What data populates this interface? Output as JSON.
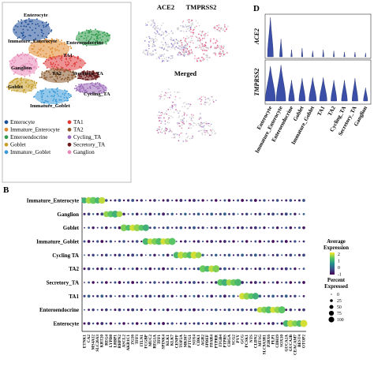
{
  "panels": {
    "a": {
      "letter": "",
      "clusters_on_map": [
        "Enterocyte",
        "Immature_Enterocyte",
        "Enteroendocrine",
        "TA1",
        "TA2",
        "Ganglion",
        "Secretory_TA",
        "Goblet",
        "Cycling_TA",
        "Immature_Goblet"
      ]
    },
    "c": {
      "letter": "",
      "titles": [
        "ACE2",
        "TMPRSS2",
        "Merged"
      ]
    },
    "d": {
      "letter": "D"
    },
    "b": {
      "letter": "B"
    }
  },
  "legend_a": {
    "items": [
      {
        "label": "Enterocyte",
        "color": "#1f4e99"
      },
      {
        "label": "TA1",
        "color": "#e03a3a"
      },
      {
        "label": "Immature_Enterocyte",
        "color": "#e08a2e"
      },
      {
        "label": "TA2",
        "color": "#8a5a2b"
      },
      {
        "label": "Enteroendocrine",
        "color": "#2e9a4a"
      },
      {
        "label": "Cycling_TA",
        "color": "#9a6ab8"
      },
      {
        "label": "Goblet",
        "color": "#c8a02e"
      },
      {
        "label": "Secretory_TA",
        "color": "#6b1a1a"
      },
      {
        "label": "Immature_Goblet",
        "color": "#3a9ad8"
      },
      {
        "label": "Ganglion",
        "color": "#e889b8"
      }
    ]
  },
  "colorbar": {
    "title_line1": "Average",
    "title_line2": "Expression",
    "ticks": [
      "2",
      "1",
      "0",
      "-1"
    ],
    "colors": [
      "#fde725",
      "#5ec962",
      "#21918c",
      "#3b528b",
      "#440154"
    ]
  },
  "size_legend": {
    "title_line1": "Percent",
    "title_line2": "Expressed",
    "items": [
      {
        "label": "0",
        "value": 0
      },
      {
        "label": "25",
        "value": 25
      },
      {
        "label": "50",
        "value": 50
      },
      {
        "label": "75",
        "value": 75
      },
      {
        "label": "100",
        "value": 100
      }
    ]
  },
  "chart_data": [
    {
      "type": "violin",
      "panel": "D",
      "genes": [
        "ACE2",
        "TMPRSS2"
      ],
      "categories": [
        "Enterocyte",
        "Immature_Enterocyte",
        "Enteroendocrine",
        "Goblet",
        "Immature_Goblet",
        "TA1",
        "TA2",
        "Cycling_TA",
        "Secretory_TA",
        "Ganglion"
      ],
      "fill": "#3b4fa8",
      "relative_heights": {
        "ACE2": [
          1.0,
          0.45,
          0.18,
          0.22,
          0.15,
          0.18,
          0.15,
          0.12,
          0.12,
          0.1
        ],
        "TMPRSS2": [
          0.92,
          0.95,
          0.55,
          0.6,
          0.62,
          0.62,
          0.55,
          0.55,
          0.6,
          0.35
        ]
      },
      "relative_widths": {
        "ACE2": [
          0.55,
          0.25,
          0.12,
          0.12,
          0.12,
          0.12,
          0.1,
          0.1,
          0.1,
          0.08
        ],
        "TMPRSS2": [
          0.95,
          0.9,
          0.55,
          0.6,
          0.7,
          0.7,
          0.55,
          0.55,
          0.55,
          0.4
        ]
      }
    },
    {
      "type": "dot",
      "panel": "B",
      "rows": [
        "Immature_Enterocyte",
        "Ganglion",
        "Goblet",
        "Immature_Goblet",
        "Cycling TA",
        "TA2",
        "Secretory_TA",
        "TA1",
        "Enteroendocrine",
        "Enterocyte"
      ],
      "genes": [
        "ETNK1",
        "CA2",
        "MS4A12",
        "SLC26A3",
        "KRT20",
        "REG4",
        "LYPD8",
        "LRBP1",
        "RHPN2",
        "ASCL2",
        "AKR1C1",
        "ZG16",
        "TFF3",
        "ITLN1",
        "FCGBP",
        "MUC2",
        "REG1A",
        "TFF1",
        "SPINK4",
        "KLK1",
        "KLK7",
        "CENPF",
        "TOP2A",
        "MKI67",
        "PTTG1",
        "SOX4",
        "CDK1",
        "AGR2",
        "SPDEF",
        "FFAR4",
        "PTPRR",
        "ITGB4",
        "PTPRS",
        "CHGA",
        "SCG2",
        "PYY",
        "GCG",
        "PCSK1",
        "NTS",
        "CLDN2",
        "MT1G",
        "SLC9A3R1",
        "P2RX6",
        "PLP1",
        "CDH19",
        "SOX10",
        "GUCA2A",
        "GUCA2B",
        "CEACAM7",
        "BEST4",
        "OTOP2"
      ],
      "dots_note": "size = percent expressed (0-100), color = average expression (-1..2)",
      "cells": [
        [
          1.6,
          90
        ],
        [
          1.4,
          85
        ],
        [
          1.1,
          70
        ],
        [
          1.0,
          60
        ],
        [
          0.8,
          55
        ],
        [
          -0.2,
          30
        ],
        [
          0.4,
          40
        ],
        [
          -0.6,
          20
        ],
        [
          0.6,
          35
        ],
        [
          -0.4,
          15
        ],
        [
          -0.5,
          20
        ],
        [
          -0.8,
          10
        ],
        [
          -0.8,
          12
        ],
        [
          -0.8,
          12
        ],
        [
          -0.7,
          12
        ],
        [
          -0.6,
          10
        ],
        [
          -0.8,
          8
        ],
        [
          -0.8,
          8
        ],
        [
          -0.7,
          8
        ],
        [
          -0.8,
          6
        ],
        [
          -0.8,
          6
        ],
        [
          -0.6,
          10
        ],
        [
          -0.6,
          10
        ],
        [
          -0.6,
          10
        ],
        [
          -0.2,
          15
        ],
        [
          -0.2,
          15
        ],
        [
          -0.4,
          10
        ],
        [
          -0.6,
          10
        ],
        [
          -0.6,
          8
        ],
        [
          -0.6,
          6
        ],
        [
          -0.6,
          6
        ],
        [
          -0.6,
          6
        ],
        [
          -0.6,
          6
        ],
        [
          -0.7,
          6
        ],
        [
          -0.7,
          6
        ],
        [
          -0.7,
          6
        ],
        [
          -0.7,
          6
        ],
        [
          -0.7,
          6
        ],
        [
          -0.7,
          6
        ],
        [
          -0.5,
          8
        ],
        [
          -0.5,
          10
        ],
        [
          -0.5,
          10
        ],
        [
          -0.7,
          5
        ],
        [
          -0.7,
          5
        ],
        [
          -0.7,
          5
        ],
        [
          -0.7,
          5
        ],
        [
          0.2,
          30
        ],
        [
          0.0,
          25
        ],
        [
          -0.4,
          15
        ],
        [
          -0.3,
          15
        ],
        [
          -0.3,
          12
        ]
      ]
    }
  ]
}
